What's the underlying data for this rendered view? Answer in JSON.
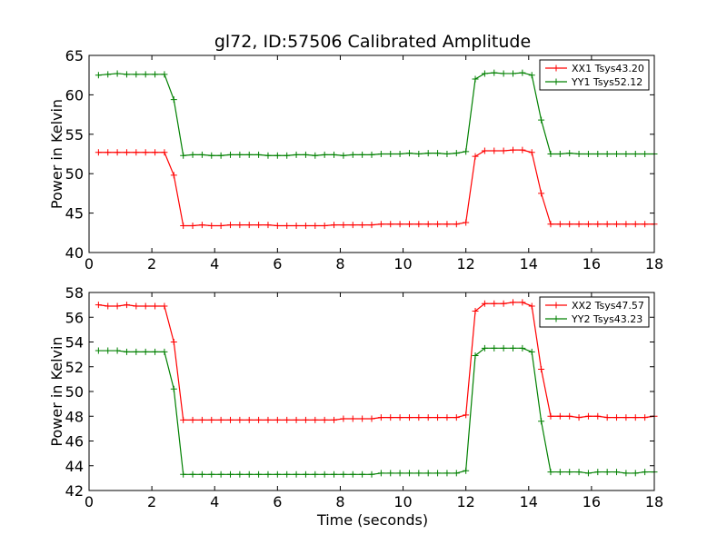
{
  "figure": {
    "title": "gl72, ID:57506 Calibrated Amplitude",
    "xlabel": "Time (seconds)"
  },
  "chart_data": [
    {
      "type": "line",
      "title": "gl72, ID:57506 Calibrated Amplitude",
      "xlabel": "",
      "ylabel": "Power in Kelvin",
      "xlim": [
        0,
        18
      ],
      "ylim": [
        40,
        65
      ],
      "xticks": [
        0,
        2,
        4,
        6,
        8,
        10,
        12,
        14,
        16,
        18
      ],
      "yticks": [
        40,
        45,
        50,
        55,
        60,
        65
      ],
      "legend_position": "top-right",
      "grid": false,
      "x": [
        0.3,
        0.6,
        0.9,
        1.2,
        1.5,
        1.8,
        2.1,
        2.4,
        2.7,
        3.0,
        3.3,
        3.6,
        3.9,
        4.2,
        4.5,
        4.8,
        5.1,
        5.4,
        5.7,
        6.0,
        6.3,
        6.6,
        6.9,
        7.2,
        7.5,
        7.8,
        8.1,
        8.4,
        8.7,
        9.0,
        9.3,
        9.6,
        9.9,
        10.2,
        10.5,
        10.8,
        11.1,
        11.4,
        11.7,
        12.0,
        12.3,
        12.6,
        12.9,
        13.2,
        13.5,
        13.8,
        14.1,
        14.4,
        14.7,
        15.0,
        15.3,
        15.6,
        15.9,
        16.2,
        16.5,
        16.8,
        17.1,
        17.4,
        17.7,
        18.0
      ],
      "series": [
        {
          "name": "XX1 Tsys43.20",
          "color": "#ff0000",
          "values": [
            52.7,
            52.7,
            52.7,
            52.7,
            52.7,
            52.7,
            52.7,
            52.7,
            49.8,
            43.4,
            43.4,
            43.5,
            43.4,
            43.4,
            43.5,
            43.5,
            43.5,
            43.5,
            43.5,
            43.4,
            43.4,
            43.4,
            43.4,
            43.4,
            43.4,
            43.5,
            43.5,
            43.5,
            43.5,
            43.5,
            43.6,
            43.6,
            43.6,
            43.6,
            43.6,
            43.6,
            43.6,
            43.6,
            43.6,
            43.8,
            52.2,
            52.9,
            52.9,
            52.9,
            53.0,
            53.0,
            52.7,
            47.5,
            43.6,
            43.6,
            43.6,
            43.6,
            43.6,
            43.6,
            43.6,
            43.6,
            43.6,
            43.6,
            43.6,
            43.6
          ]
        },
        {
          "name": "YY1 Tsys52.12",
          "color": "#008000",
          "values": [
            62.5,
            62.6,
            62.7,
            62.6,
            62.6,
            62.6,
            62.6,
            62.6,
            59.4,
            52.3,
            52.4,
            52.4,
            52.3,
            52.3,
            52.4,
            52.4,
            52.4,
            52.4,
            52.3,
            52.3,
            52.3,
            52.4,
            52.4,
            52.3,
            52.4,
            52.4,
            52.3,
            52.4,
            52.4,
            52.4,
            52.5,
            52.5,
            52.5,
            52.6,
            52.5,
            52.6,
            52.6,
            52.5,
            52.6,
            52.8,
            62.0,
            62.7,
            62.8,
            62.7,
            62.7,
            62.8,
            62.5,
            56.8,
            52.5,
            52.5,
            52.6,
            52.5,
            52.5,
            52.5,
            52.5,
            52.5,
            52.5,
            52.5,
            52.5,
            52.5
          ]
        }
      ]
    },
    {
      "type": "line",
      "title": "",
      "xlabel": "Time (seconds)",
      "ylabel": "Power in Kelvin",
      "xlim": [
        0,
        18
      ],
      "ylim": [
        42,
        58
      ],
      "xticks": [
        0,
        2,
        4,
        6,
        8,
        10,
        12,
        14,
        16,
        18
      ],
      "yticks": [
        42,
        44,
        46,
        48,
        50,
        52,
        54,
        56,
        58
      ],
      "legend_position": "top-right",
      "grid": false,
      "x": [
        0.3,
        0.6,
        0.9,
        1.2,
        1.5,
        1.8,
        2.1,
        2.4,
        2.7,
        3.0,
        3.3,
        3.6,
        3.9,
        4.2,
        4.5,
        4.8,
        5.1,
        5.4,
        5.7,
        6.0,
        6.3,
        6.6,
        6.9,
        7.2,
        7.5,
        7.8,
        8.1,
        8.4,
        8.7,
        9.0,
        9.3,
        9.6,
        9.9,
        10.2,
        10.5,
        10.8,
        11.1,
        11.4,
        11.7,
        12.0,
        12.3,
        12.6,
        12.9,
        13.2,
        13.5,
        13.8,
        14.1,
        14.4,
        14.7,
        15.0,
        15.3,
        15.6,
        15.9,
        16.2,
        16.5,
        16.8,
        17.1,
        17.4,
        17.7,
        18.0
      ],
      "series": [
        {
          "name": "XX2 Tsys47.57",
          "color": "#ff0000",
          "values": [
            57.0,
            56.9,
            56.9,
            57.0,
            56.9,
            56.9,
            56.9,
            56.9,
            54.0,
            47.7,
            47.7,
            47.7,
            47.7,
            47.7,
            47.7,
            47.7,
            47.7,
            47.7,
            47.7,
            47.7,
            47.7,
            47.7,
            47.7,
            47.7,
            47.7,
            47.7,
            47.8,
            47.8,
            47.8,
            47.8,
            47.9,
            47.9,
            47.9,
            47.9,
            47.9,
            47.9,
            47.9,
            47.9,
            47.9,
            48.1,
            56.5,
            57.1,
            57.1,
            57.1,
            57.2,
            57.2,
            56.9,
            51.8,
            48.0,
            48.0,
            48.0,
            47.9,
            48.0,
            48.0,
            47.9,
            47.9,
            47.9,
            47.9,
            47.9,
            48.0
          ]
        },
        {
          "name": "YY2 Tsys43.23",
          "color": "#008000",
          "values": [
            53.3,
            53.3,
            53.3,
            53.2,
            53.2,
            53.2,
            53.2,
            53.2,
            50.2,
            43.3,
            43.3,
            43.3,
            43.3,
            43.3,
            43.3,
            43.3,
            43.3,
            43.3,
            43.3,
            43.3,
            43.3,
            43.3,
            43.3,
            43.3,
            43.3,
            43.3,
            43.3,
            43.3,
            43.3,
            43.3,
            43.4,
            43.4,
            43.4,
            43.4,
            43.4,
            43.4,
            43.4,
            43.4,
            43.4,
            43.6,
            52.9,
            53.5,
            53.5,
            53.5,
            53.5,
            53.5,
            53.2,
            47.6,
            43.5,
            43.5,
            43.5,
            43.5,
            43.4,
            43.5,
            43.5,
            43.5,
            43.4,
            43.4,
            43.5,
            43.5
          ]
        }
      ]
    }
  ]
}
